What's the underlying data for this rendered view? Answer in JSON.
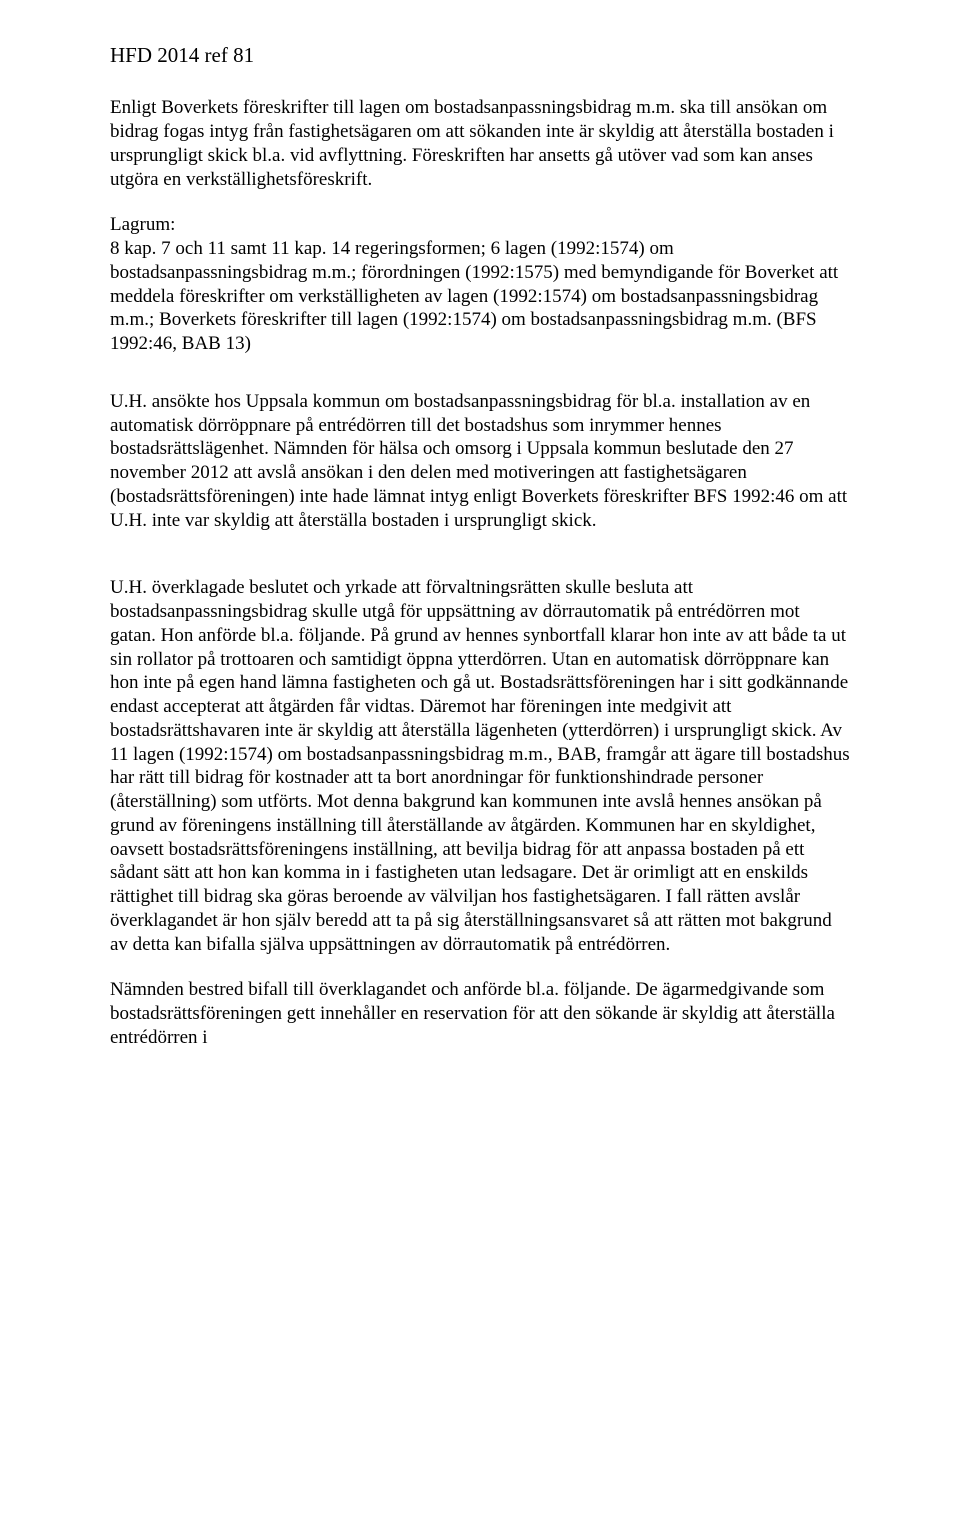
{
  "header": "HFD 2014 ref 81",
  "intro": "Enligt Boverkets föreskrifter till lagen om bostadsanpassningsbidrag m.m. ska till ansökan om bidrag fogas intyg från fastighetsägaren om att sökanden inte är skyldig att återställa bostaden i ursprungligt skick bl.a. vid avflyttning. Föreskriften har ansetts gå utöver vad som kan anses utgöra en verkställighetsföreskrift.",
  "lagrum": {
    "label": "Lagrum:",
    "body": "8 kap. 7 och 11 samt 11 kap. 14 regeringsformen; 6 lagen (1992:1574) om bostadsanpassningsbidrag m.m.; förordningen (1992:1575) med bemyndigande för Boverket att meddela föreskrifter om verkställigheten av lagen (1992:1574) om bostadsanpassningsbidrag m.m.; Boverkets föreskrifter till lagen (1992:1574) om bostadsanpassningsbidrag m.m. (BFS 1992:46, BAB 13)"
  },
  "p1": "U.H. ansökte hos Uppsala kommun om bostadsanpassningsbidrag för bl.a. installation av en automatisk dörröppnare på entrédörren till det bostadshus som inrymmer hennes bostadsrättslägenhet. Nämnden för hälsa och omsorg i Uppsala kommun beslutade den 27 november 2012 att avslå ansökan i den delen med motiveringen att fastighetsägaren (bostadsrättsföreningen) inte hade lämnat intyg enligt Boverkets föreskrifter BFS 1992:46 om att U.H. inte var skyldig att återställa bostaden i ursprungligt skick.",
  "p2": "U.H. överklagade beslutet och yrkade att förvaltningsrätten skulle besluta att bostadsanpassningsbidrag skulle utgå för uppsättning av dörrautomatik på entrédörren mot gatan. Hon anförde bl.a. följande. På grund av hennes synbortfall klarar hon inte av att både ta ut sin rollator på trottoaren och samtidigt öppna ytterdörren. Utan en automatisk dörröppnare kan hon inte på egen hand lämna fastigheten och gå ut. Bostadsrättsföreningen har i sitt godkännande endast accepterat att åtgärden får vidtas. Däremot har föreningen inte medgivit att bostadsrättshavaren inte är skyldig att återställa lägenheten (ytterdörren) i ursprungligt skick. Av 11 lagen (1992:1574) om bostadsanpassningsbidrag m.m., BAB, framgår att ägare till bostadshus har rätt till bidrag för kostnader att ta bort anordningar för funktionshindrade personer (återställning) som utförts. Mot denna bakgrund kan kommunen inte avslå hennes ansökan på grund av föreningens inställning till återställande av åtgärden. Kommunen har en skyldighet, oavsett bostadsrättsföreningens inställning, att bevilja bidrag för att anpassa bostaden på ett sådant sätt att hon kan komma in i fastigheten utan ledsagare. Det är orimligt att en enskilds rättighet till bidrag ska göras beroende av välviljan hos fastighetsägaren. I fall rätten avslår överklagandet är hon själv beredd att ta på sig återställningsansvaret så att rätten mot bakgrund av detta kan bifalla själva uppsättningen av dörrautomatik på entrédörren.",
  "p3": "Nämnden bestred bifall till överklagandet och anförde bl.a. följande. De ägarmedgivande som bostadsrättsföreningen gett innehåller en reservation för att den sökande är skyldig att återställa entrédörren i"
}
